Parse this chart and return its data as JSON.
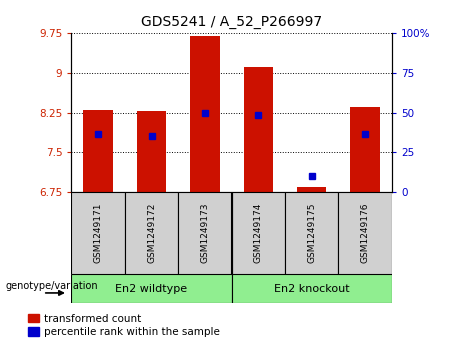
{
  "title": "GDS5241 / A_52_P266997",
  "samples": [
    "GSM1249171",
    "GSM1249172",
    "GSM1249173",
    "GSM1249174",
    "GSM1249175",
    "GSM1249176"
  ],
  "transformed_count": [
    8.3,
    8.28,
    9.68,
    9.1,
    6.85,
    8.35
  ],
  "percentile_rank": [
    7.85,
    7.8,
    8.25,
    8.2,
    7.05,
    7.85
  ],
  "ylim_left": [
    6.75,
    9.75
  ],
  "ylim_right": [
    0,
    100
  ],
  "yticks_left": [
    6.75,
    7.5,
    8.25,
    9.0,
    9.75
  ],
  "yticks_right": [
    0,
    25,
    50,
    75,
    100
  ],
  "ytick_labels_left": [
    "6.75",
    "7.5",
    "8.25",
    "9",
    "9.75"
  ],
  "ytick_labels_right": [
    "0",
    "25",
    "50",
    "75",
    "100%"
  ],
  "group1_label": "En2 wildtype",
  "group2_label": "En2 knockout",
  "group1_color": "#90EE90",
  "group2_color": "#90EE90",
  "bar_color": "#CC1100",
  "marker_color": "#0000CC",
  "legend_label1": "transformed count",
  "legend_label2": "percentile rank within the sample",
  "genotype_label": "genotype/variation",
  "title_fontsize": 10,
  "tick_fontsize": 7.5,
  "bar_width": 0.55,
  "left_ytick_color": "#CC2200",
  "right_ytick_color": "#0000CC",
  "axis_base": 6.75,
  "grid_color": "#000000",
  "grid_linewidth": 0.7
}
